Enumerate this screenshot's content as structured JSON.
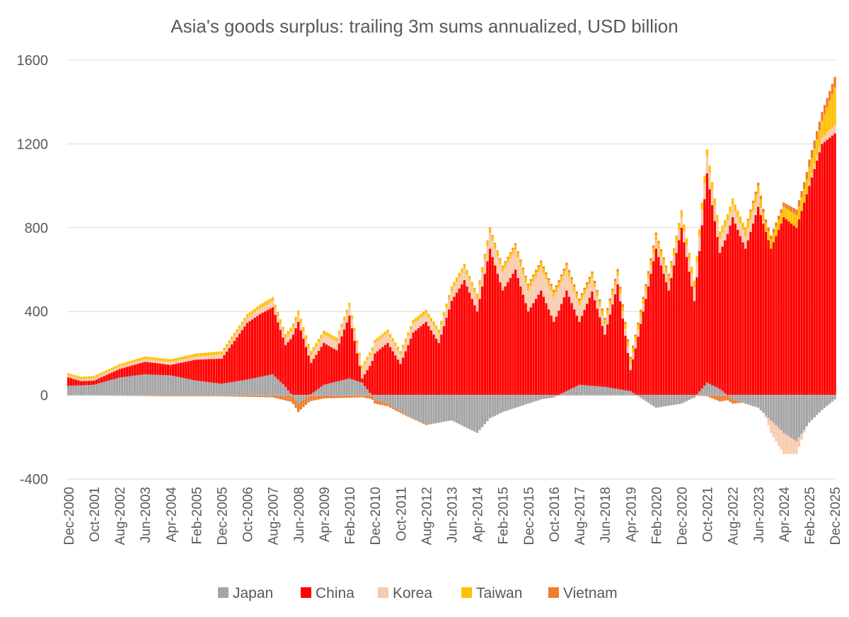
{
  "chart_data": {
    "type": "bar",
    "stacked": true,
    "title": "Asia's goods surplus: trailing 3m sums annualized, USD billion",
    "xlabel": "",
    "ylabel": "",
    "ylim": [
      -400,
      1600
    ],
    "yticks": [
      -400,
      0,
      400,
      800,
      1200,
      1600
    ],
    "grid": "horizontal",
    "legend_position": "bottom",
    "x_tick_labels": [
      "Dec-2000",
      "Oct-2001",
      "Aug-2002",
      "Jun-2003",
      "Apr-2004",
      "Feb-2005",
      "Dec-2005",
      "Oct-2006",
      "Aug-2007",
      "Jun-2008",
      "Apr-2009",
      "Feb-2010",
      "Dec-2010",
      "Oct-2011",
      "Aug-2012",
      "Jun-2013",
      "Apr-2014",
      "Feb-2015",
      "Dec-2015",
      "Oct-2016",
      "Aug-2017",
      "Jun-2018",
      "Apr-2019",
      "Feb-2020",
      "Dec-2020",
      "Oct-2021",
      "Aug-2022",
      "Jun-2023",
      "Apr-2024",
      "Feb-2025",
      "Dec-2025"
    ],
    "x_tick_every_months": 10,
    "months": 301,
    "series": [
      {
        "name": "Japan",
        "color": "#A5A5A5",
        "anchors": [
          [
            0,
            45
          ],
          [
            10,
            50
          ],
          [
            20,
            85
          ],
          [
            30,
            100
          ],
          [
            40,
            95
          ],
          [
            50,
            70
          ],
          [
            60,
            55
          ],
          [
            70,
            75
          ],
          [
            80,
            100
          ],
          [
            85,
            40
          ],
          [
            90,
            -40
          ],
          [
            100,
            50
          ],
          [
            110,
            80
          ],
          [
            115,
            60
          ],
          [
            120,
            -20
          ],
          [
            125,
            -40
          ],
          [
            130,
            -80
          ],
          [
            140,
            -140
          ],
          [
            150,
            -120
          ],
          [
            160,
            -180
          ],
          [
            165,
            -110
          ],
          [
            170,
            -80
          ],
          [
            175,
            -60
          ],
          [
            180,
            -40
          ],
          [
            185,
            -20
          ],
          [
            190,
            -10
          ],
          [
            200,
            50
          ],
          [
            210,
            40
          ],
          [
            220,
            20
          ],
          [
            230,
            -60
          ],
          [
            240,
            -40
          ],
          [
            245,
            -10
          ],
          [
            250,
            60
          ],
          [
            255,
            30
          ],
          [
            260,
            -20
          ],
          [
            270,
            -60
          ],
          [
            280,
            -180
          ],
          [
            285,
            -220
          ],
          [
            290,
            -130
          ],
          [
            295,
            -70
          ],
          [
            300,
            -20
          ],
          [
            301,
            -20
          ]
        ]
      },
      {
        "name": "China",
        "color": "#FF0000",
        "anchors": [
          [
            0,
            40
          ],
          [
            5,
            20
          ],
          [
            10,
            20
          ],
          [
            20,
            40
          ],
          [
            30,
            60
          ],
          [
            40,
            50
          ],
          [
            50,
            100
          ],
          [
            60,
            120
          ],
          [
            70,
            270
          ],
          [
            75,
            300
          ],
          [
            80,
            320
          ],
          [
            85,
            200
          ],
          [
            90,
            350
          ],
          [
            95,
            150
          ],
          [
            100,
            200
          ],
          [
            105,
            150
          ],
          [
            110,
            300
          ],
          [
            115,
            20
          ],
          [
            120,
            200
          ],
          [
            125,
            250
          ],
          [
            130,
            150
          ],
          [
            135,
            300
          ],
          [
            140,
            350
          ],
          [
            145,
            250
          ],
          [
            150,
            450
          ],
          [
            155,
            550
          ],
          [
            160,
            400
          ],
          [
            165,
            700
          ],
          [
            170,
            500
          ],
          [
            175,
            600
          ],
          [
            180,
            400
          ],
          [
            185,
            500
          ],
          [
            190,
            350
          ],
          [
            195,
            480
          ],
          [
            200,
            300
          ],
          [
            205,
            450
          ],
          [
            210,
            250
          ],
          [
            215,
            500
          ],
          [
            220,
            100
          ],
          [
            225,
            400
          ],
          [
            230,
            700
          ],
          [
            235,
            500
          ],
          [
            240,
            800
          ],
          [
            245,
            450
          ],
          [
            250,
            1000
          ],
          [
            255,
            650
          ],
          [
            260,
            850
          ],
          [
            265,
            700
          ],
          [
            270,
            900
          ],
          [
            275,
            700
          ],
          [
            280,
            850
          ],
          [
            285,
            800
          ],
          [
            290,
            1000
          ],
          [
            295,
            1200
          ],
          [
            300,
            1250
          ],
          [
            301,
            1270
          ]
        ]
      },
      {
        "name": "Korea",
        "color": "#F8CBAD",
        "anchors": [
          [
            0,
            10
          ],
          [
            50,
            15
          ],
          [
            80,
            30
          ],
          [
            100,
            40
          ],
          [
            120,
            50
          ],
          [
            140,
            40
          ],
          [
            160,
            60
          ],
          [
            170,
            90
          ],
          [
            180,
            100
          ],
          [
            190,
            120
          ],
          [
            200,
            80
          ],
          [
            210,
            50
          ],
          [
            220,
            30
          ],
          [
            230,
            40
          ],
          [
            240,
            50
          ],
          [
            250,
            80
          ],
          [
            260,
            60
          ],
          [
            270,
            60
          ],
          [
            275,
            -60
          ],
          [
            280,
            -100
          ],
          [
            285,
            -60
          ],
          [
            290,
            20
          ],
          [
            300,
            40
          ],
          [
            301,
            40
          ]
        ]
      },
      {
        "name": "Taiwan",
        "color": "#FFC000",
        "anchors": [
          [
            0,
            10
          ],
          [
            30,
            12
          ],
          [
            60,
            15
          ],
          [
            90,
            20
          ],
          [
            120,
            15
          ],
          [
            150,
            20
          ],
          [
            180,
            25
          ],
          [
            210,
            20
          ],
          [
            240,
            30
          ],
          [
            250,
            35
          ],
          [
            260,
            30
          ],
          [
            270,
            40
          ],
          [
            280,
            50
          ],
          [
            290,
            70
          ],
          [
            295,
            80
          ],
          [
            300,
            180
          ],
          [
            301,
            200
          ]
        ]
      },
      {
        "name": "Vietnam",
        "color": "#ED7D31",
        "anchors": [
          [
            0,
            0
          ],
          [
            40,
            -5
          ],
          [
            60,
            -5
          ],
          [
            80,
            -10
          ],
          [
            90,
            -40
          ],
          [
            100,
            -15
          ],
          [
            115,
            -10
          ],
          [
            120,
            -20
          ],
          [
            130,
            -5
          ],
          [
            150,
            0
          ],
          [
            170,
            5
          ],
          [
            190,
            10
          ],
          [
            210,
            10
          ],
          [
            230,
            10
          ],
          [
            250,
            -5
          ],
          [
            255,
            -30
          ],
          [
            260,
            -20
          ],
          [
            265,
            5
          ],
          [
            270,
            15
          ],
          [
            280,
            20
          ],
          [
            290,
            35
          ],
          [
            300,
            50
          ],
          [
            301,
            50
          ]
        ]
      }
    ]
  },
  "legend": {
    "items": [
      {
        "label": "Japan",
        "color": "#A5A5A5"
      },
      {
        "label": "China",
        "color": "#FF0000"
      },
      {
        "label": "Korea",
        "color": "#F8CBAD"
      },
      {
        "label": "Taiwan",
        "color": "#FFC000"
      },
      {
        "label": "Vietnam",
        "color": "#ED7D31"
      }
    ]
  }
}
